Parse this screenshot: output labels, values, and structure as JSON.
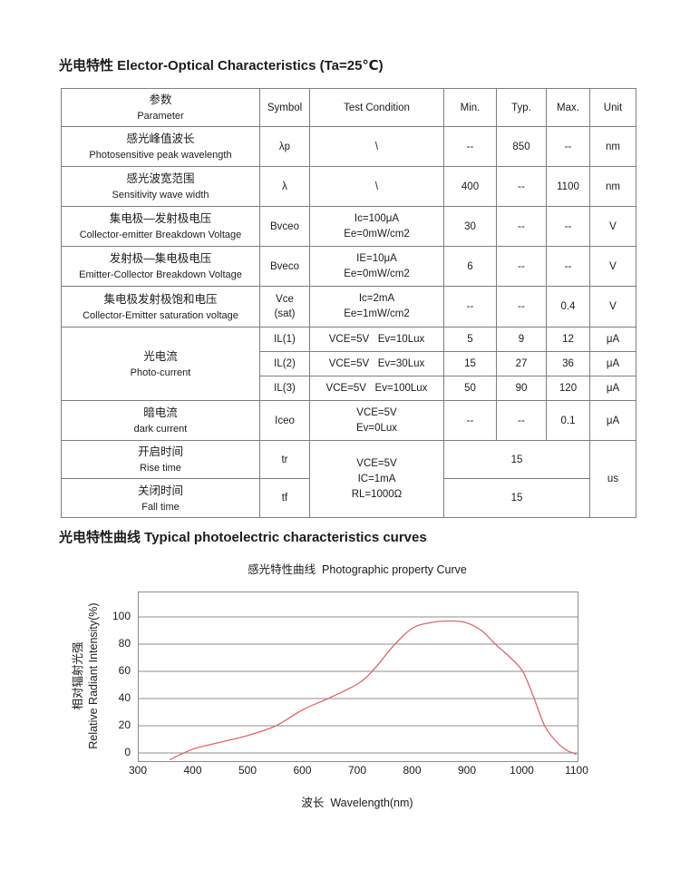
{
  "page": {
    "section1_title": "光电特性 Elector-Optical Characteristics (Ta=25℃)",
    "section2_title": "光电特性曲线 Typical photoelectric characteristics curves"
  },
  "table": {
    "header": {
      "parameter_zh": "参数",
      "parameter_en": "Parameter",
      "symbol": "Symbol",
      "test_condition": "Test Condition",
      "min": "Min.",
      "typ": "Typ.",
      "max": "Max.",
      "unit": "Unit"
    },
    "rows": {
      "peak_wavelength": {
        "zh": "感光峰值波长",
        "en": "Photosensitive peak wavelength",
        "symbol": "λp",
        "condition": "\\",
        "min": "--",
        "typ": "850",
        "max": "--",
        "unit": "nm"
      },
      "wave_width": {
        "zh": "感光波宽范围",
        "en": "Sensitivity wave width",
        "symbol": "λ",
        "condition": "\\",
        "min": "400",
        "typ": "--",
        "max": "1100",
        "unit": "nm"
      },
      "bvceo": {
        "zh": "集电极—发射极电压",
        "en": "Collector-emitter Breakdown Voltage",
        "symbol": "Bvceo",
        "condition_lines": [
          "Ic=100μA",
          "Ee=0mW/cm2"
        ],
        "min": "30",
        "typ": "--",
        "max": "--",
        "unit": "V"
      },
      "bveco": {
        "zh": "发射极—集电极电压",
        "en": "Emitter-Collector Breakdown Voltage",
        "symbol": "Bveco",
        "condition_lines": [
          "IE=10μA",
          "Ee=0mW/cm2"
        ],
        "min": "6",
        "typ": "--",
        "max": "--",
        "unit": "V"
      },
      "vce_sat": {
        "zh": "集电极发射极饱和电压",
        "en": "Collector-Emitter saturation voltage",
        "symbol_lines": [
          "Vce",
          "(sat)"
        ],
        "condition_lines": [
          "Ic=2mA",
          "Ee=1mW/cm2"
        ],
        "min": "--",
        "typ": "--",
        "max": "0.4",
        "unit": "V"
      },
      "photo_current": {
        "zh": "光电流",
        "en": "Photo-current",
        "il1": {
          "symbol": "IL(1)",
          "condition": "VCE=5V   Ev=10Lux",
          "min": "5",
          "typ": "9",
          "max": "12",
          "unit": "μA"
        },
        "il2": {
          "symbol": "IL(2)",
          "condition": "VCE=5V   Ev=30Lux",
          "min": "15",
          "typ": "27",
          "max": "36",
          "unit": "μA"
        },
        "il3": {
          "symbol": "IL(3)",
          "condition": "VCE=5V   Ev=100Lux",
          "min": "50",
          "typ": "90",
          "max": "120",
          "unit": "μA"
        }
      },
      "dark_current": {
        "zh": "暗电流",
        "en": "dark current",
        "symbol": "Iceo",
        "condition_lines": [
          "VCE=5V",
          "Ev=0Lux"
        ],
        "min": "--",
        "typ": "--",
        "max": "0.1",
        "unit": "μA"
      },
      "rise_time": {
        "zh": "开启时间",
        "en": "Rise time",
        "symbol": "tr",
        "value": "15"
      },
      "fall_time": {
        "zh": "关闭时间",
        "en": "Fall time",
        "symbol": "tf",
        "value": "15"
      },
      "time_condition_lines": [
        "VCE=5V",
        "IC=1mA",
        "RL=1000Ω"
      ],
      "time_unit": "us"
    }
  },
  "chart_data": {
    "type": "line",
    "title": "感光特性曲线  Photographic property Curve",
    "xlabel": "波长  Wavelength(nm)",
    "ylabel_zh": "相对辐射光强",
    "ylabel_en": "Relative Radiant Intensity(%)",
    "xlim": [
      300,
      1100
    ],
    "ylim": [
      -6,
      118
    ],
    "x_ticks": [
      300,
      400,
      500,
      600,
      700,
      800,
      900,
      1000,
      1100
    ],
    "y_gridlines": [
      0,
      20,
      40,
      60,
      80,
      100
    ],
    "grid": "horizontal",
    "legend": "none",
    "curve_color": "#d96b6b",
    "series": [
      {
        "name": "Relative Radiant Intensity",
        "points": [
          [
            356,
            -5
          ],
          [
            400,
            3
          ],
          [
            450,
            8
          ],
          [
            500,
            13
          ],
          [
            550,
            20
          ],
          [
            600,
            32
          ],
          [
            645,
            40
          ],
          [
            700,
            51
          ],
          [
            730,
            62
          ],
          [
            765,
            79
          ],
          [
            800,
            92
          ],
          [
            835,
            96
          ],
          [
            865,
            97
          ],
          [
            895,
            96
          ],
          [
            925,
            90
          ],
          [
            950,
            80
          ],
          [
            975,
            71
          ],
          [
            1000,
            60
          ],
          [
            1020,
            41
          ],
          [
            1040,
            20
          ],
          [
            1062,
            8
          ],
          [
            1080,
            2
          ],
          [
            1092,
            0
          ],
          [
            1098,
            -1
          ]
        ]
      }
    ]
  }
}
